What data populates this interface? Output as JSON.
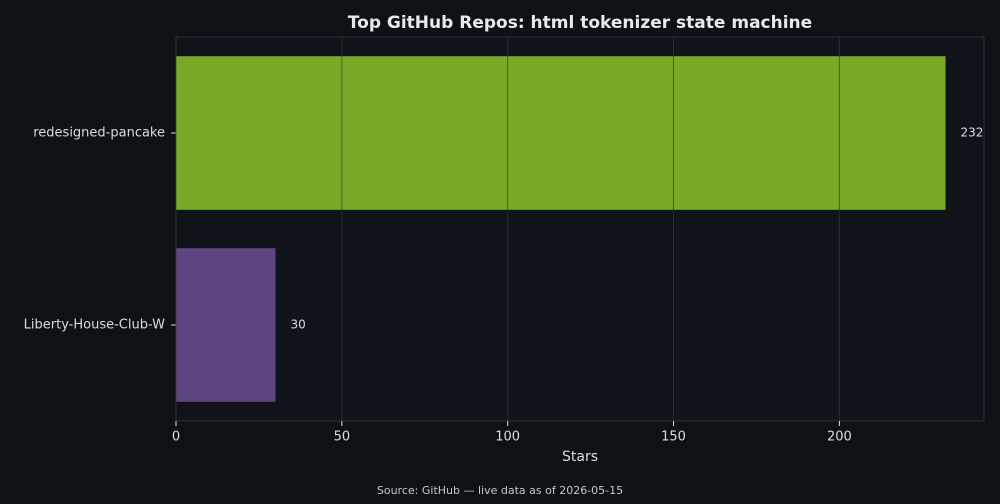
{
  "chart_data": {
    "type": "hbar",
    "title": "Top GitHub Repos: html tokenizer state machine",
    "x_label": "Stars",
    "source": "Source: GitHub — live data as of 2026-05-15",
    "categories": [
      "redesigned-pancake",
      "Liberty-House-Club-W"
    ],
    "values": [
      232,
      30
    ],
    "colors": [
      "#77ab27",
      "#5e4580"
    ],
    "xlim": [
      0,
      243.6
    ],
    "xticks": [
      0,
      50,
      100,
      150,
      200
    ],
    "grid": true
  }
}
